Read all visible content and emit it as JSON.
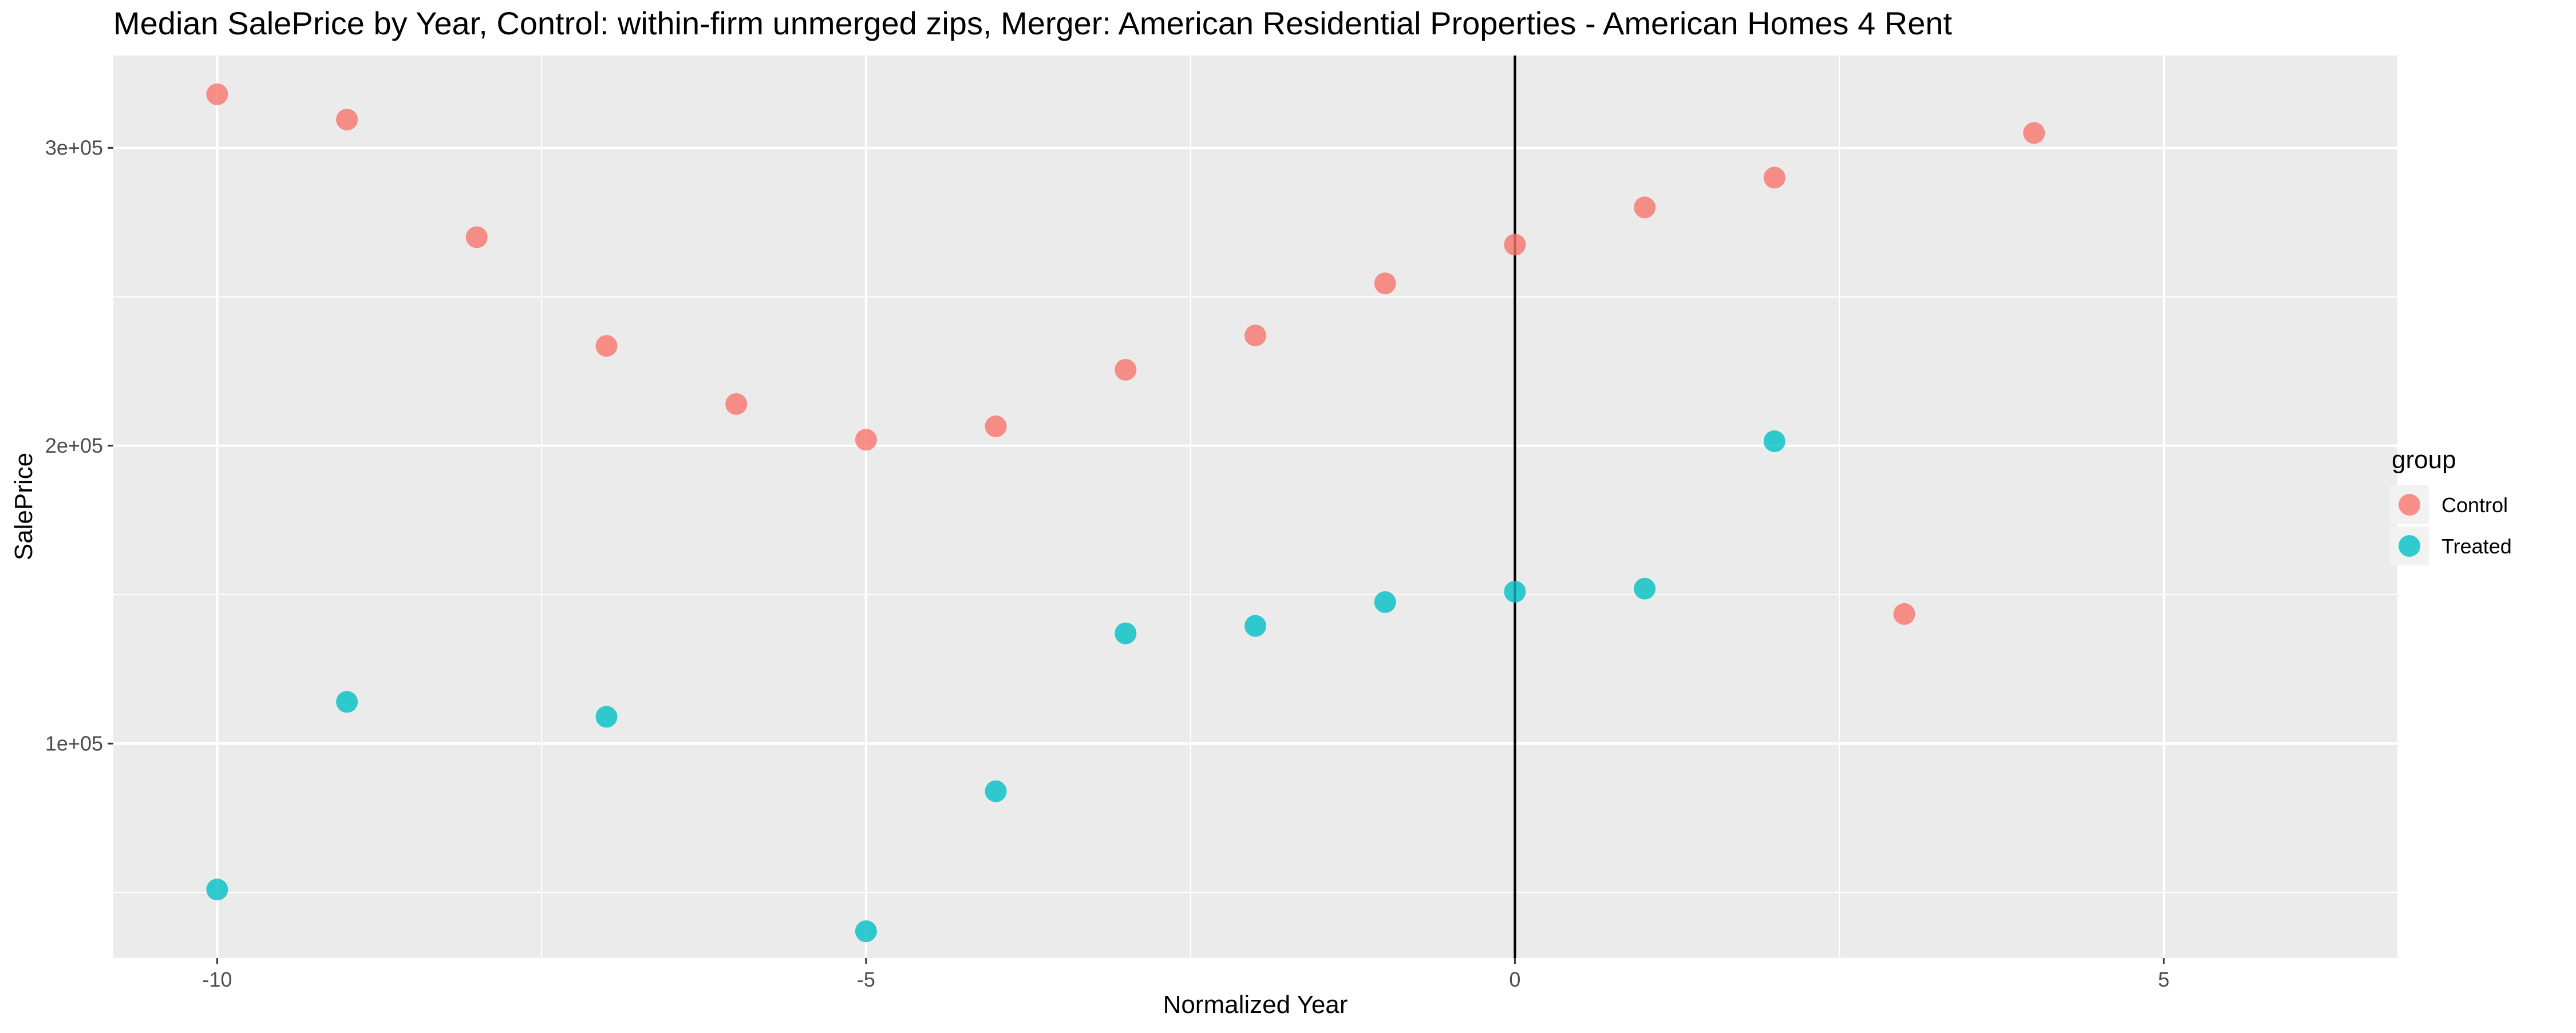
{
  "chart_data": {
    "type": "scatter",
    "title": "Median SalePrice by Year, Control: within-firm unmerged zips, Merger: American Residential Properties - American Homes 4 Rent",
    "xlabel": "Normalized Year",
    "ylabel": "SalePrice",
    "xlim": [
      -10.8,
      6.8
    ],
    "ylim": [
      28000,
      331000
    ],
    "x_ticks": [
      -10,
      -5,
      0,
      5
    ],
    "x_tick_labels": [
      "-10",
      "-5",
      "0",
      "5"
    ],
    "y_ticks": [
      100000,
      200000,
      300000
    ],
    "y_tick_labels": [
      "1e+05",
      "2e+05",
      "3e+05"
    ],
    "vline_x": 0,
    "grid": true,
    "legend": {
      "title": "group",
      "position": "right"
    },
    "series": [
      {
        "name": "Control",
        "color": "#F8766D",
        "points": [
          {
            "x": -10,
            "y": 318000
          },
          {
            "x": -9,
            "y": 309500
          },
          {
            "x": -8,
            "y": 270000
          },
          {
            "x": -7,
            "y": 233500
          },
          {
            "x": -6,
            "y": 214000
          },
          {
            "x": -5,
            "y": 202000
          },
          {
            "x": -4,
            "y": 206500
          },
          {
            "x": -3,
            "y": 225500
          },
          {
            "x": -2,
            "y": 237000
          },
          {
            "x": -1,
            "y": 254500
          },
          {
            "x": 0,
            "y": 267500
          },
          {
            "x": 1,
            "y": 280000
          },
          {
            "x": 2,
            "y": 290000
          },
          {
            "x": 3,
            "y": 143500
          },
          {
            "x": 4,
            "y": 305000
          }
        ]
      },
      {
        "name": "Treated",
        "color": "#00BFC4",
        "points": [
          {
            "x": -10,
            "y": 51000
          },
          {
            "x": -9,
            "y": 114000
          },
          {
            "x": -7,
            "y": 109000
          },
          {
            "x": -5,
            "y": 37000
          },
          {
            "x": -4,
            "y": 84000
          },
          {
            "x": -3,
            "y": 137000
          },
          {
            "x": -2,
            "y": 139500
          },
          {
            "x": -1,
            "y": 147500
          },
          {
            "x": 0,
            "y": 151000
          },
          {
            "x": 1,
            "y": 152000
          },
          {
            "x": 2,
            "y": 201500
          }
        ]
      }
    ]
  }
}
